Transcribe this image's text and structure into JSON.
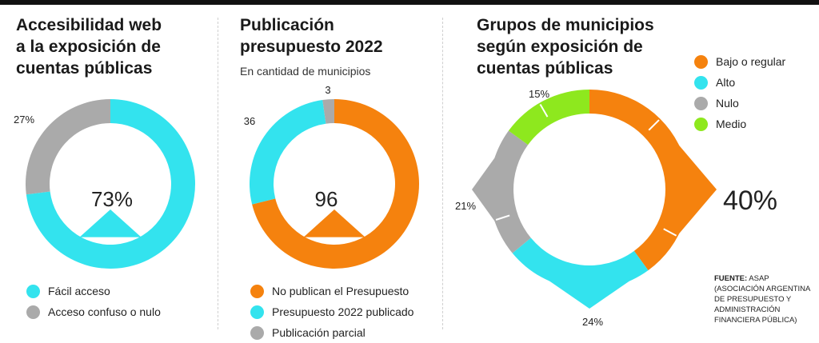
{
  "panel1": {
    "title": [
      "Accesibilidad web",
      "a la exposición de",
      "cuentas públicas"
    ],
    "center_label": "73%",
    "legend": [
      {
        "label": "Fácil acceso",
        "color": "#33e3ee"
      },
      {
        "label": "Acceso confuso o nulo",
        "color": "#aaaaaa"
      }
    ]
  },
  "panel2": {
    "title": [
      "Publicación",
      "presupuesto 2022"
    ],
    "subtitle": "En cantidad de municipios",
    "center_label": "96",
    "legend": [
      {
        "label": "No publican el Presupuesto",
        "color": "#f5820e"
      },
      {
        "label": "Presupuesto 2022 publicado",
        "color": "#33e3ee"
      },
      {
        "label": "Publicación parcial",
        "color": "#aaaaaa"
      }
    ]
  },
  "panel3": {
    "title": [
      "Grupos de municipios",
      "según exposición de",
      "cuentas públicas"
    ],
    "legend": [
      {
        "label": "Bajo o regular",
        "color": "#f5820e"
      },
      {
        "label": "Alto",
        "color": "#33e3ee"
      },
      {
        "label": "Nulo",
        "color": "#aaaaaa"
      },
      {
        "label": "Medio",
        "color": "#8ee81e"
      }
    ]
  },
  "source": {
    "label": "FUENTE:",
    "lines": [
      "ASAP",
      "(ASOCIACIÓN ARGENTINA",
      "DE PRESUPUESTO Y",
      "ADMINISTRACIÓN",
      "FINANCIERA PÚBLICA)"
    ]
  },
  "chart_data": [
    {
      "type": "pie",
      "title": "Accesibilidad web a la exposición de cuentas públicas",
      "categories": [
        "Fácil acceso",
        "Acceso confuso o nulo"
      ],
      "values": [
        73,
        27
      ],
      "value_labels": [
        "73%",
        "27%"
      ],
      "colors": [
        "#33e3ee",
        "#aaaaaa"
      ],
      "legend": "bottom"
    },
    {
      "type": "pie",
      "title": "Publicación presupuesto 2022",
      "subtitle": "En cantidad de municipios",
      "categories": [
        "No publican el Presupuesto",
        "Presupuesto 2022 publicado",
        "Publicación parcial"
      ],
      "values": [
        96,
        36,
        3
      ],
      "value_labels": [
        "96",
        "36",
        "3"
      ],
      "colors": [
        "#f5820e",
        "#33e3ee",
        "#aaaaaa"
      ],
      "legend": "bottom"
    },
    {
      "type": "pie",
      "title": "Grupos de municipios según exposición de cuentas públicas",
      "categories": [
        "Bajo o regular",
        "Alto",
        "Nulo",
        "Medio"
      ],
      "values": [
        40,
        24,
        21,
        15
      ],
      "value_labels": [
        "40%",
        "24%",
        "21%",
        "15%"
      ],
      "colors": [
        "#f5820e",
        "#33e3ee",
        "#aaaaaa",
        "#8ee81e"
      ],
      "legend": "top-right"
    }
  ]
}
